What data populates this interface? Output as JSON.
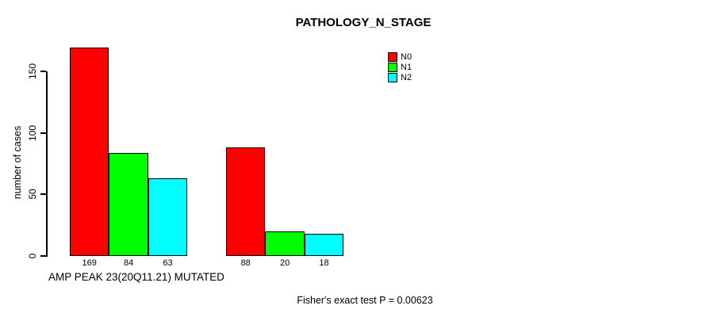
{
  "chart_data": {
    "type": "bar",
    "title": "PATHOLOGY_N_STAGE",
    "ylabel": "number of cases",
    "xlabel": "AMP PEAK 23(20Q11.21) MUTATED",
    "annotation": "Fisher's exact test P = 0.00623",
    "yticks": [
      0,
      50,
      100,
      150
    ],
    "ylim": [
      0,
      170
    ],
    "grid": false,
    "legend_position": "top-right",
    "groups": 2,
    "series": [
      {
        "name": "N0",
        "color": "#ff0000",
        "values": [
          169,
          88
        ]
      },
      {
        "name": "N1",
        "color": "#00ff00",
        "values": [
          84,
          20
        ]
      },
      {
        "name": "N2",
        "color": "#00ffff",
        "values": [
          63,
          18
        ]
      }
    ]
  }
}
